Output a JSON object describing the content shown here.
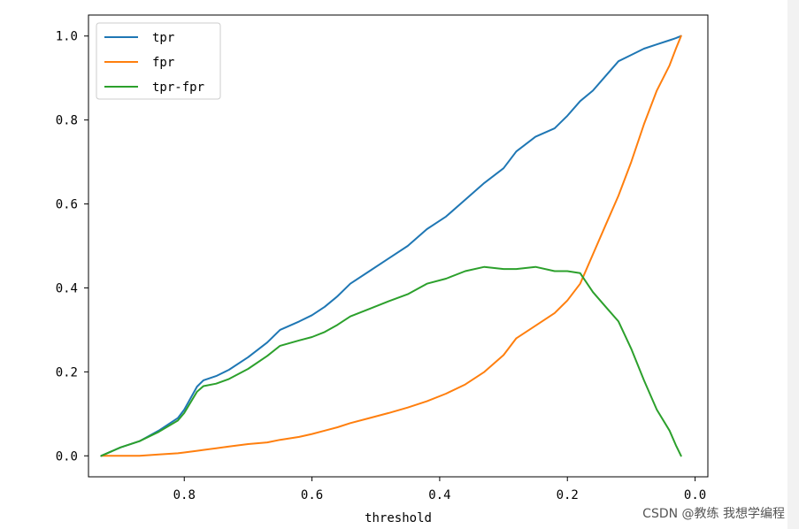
{
  "watermark": "CSDN @教练 我想学编程",
  "chart_data": {
    "type": "line",
    "xlabel": "threshold",
    "ylabel": "",
    "xlim": [
      0.95,
      -0.02
    ],
    "ylim": [
      -0.05,
      1.05
    ],
    "x_inverted": true,
    "xticks": [
      0.8,
      0.6,
      0.4,
      0.2,
      0.0
    ],
    "xtick_labels": [
      "0.8",
      "0.6",
      "0.4",
      "0.2",
      "0.0"
    ],
    "yticks": [
      0.0,
      0.2,
      0.4,
      0.6,
      0.8,
      1.0
    ],
    "ytick_labels": [
      "0.0",
      "0.2",
      "0.4",
      "0.6",
      "0.8",
      "1.0"
    ],
    "grid": false,
    "legend_position": "upper-left",
    "x": [
      0.93,
      0.9,
      0.87,
      0.84,
      0.81,
      0.8,
      0.78,
      0.77,
      0.75,
      0.73,
      0.7,
      0.67,
      0.65,
      0.62,
      0.6,
      0.58,
      0.56,
      0.54,
      0.51,
      0.48,
      0.45,
      0.42,
      0.39,
      0.36,
      0.33,
      0.3,
      0.28,
      0.25,
      0.22,
      0.2,
      0.18,
      0.16,
      0.14,
      0.12,
      0.1,
      0.08,
      0.06,
      0.04,
      0.03,
      0.022
    ],
    "series": [
      {
        "name": "tpr",
        "color": "#1f77b4",
        "values": [
          0.0,
          0.02,
          0.035,
          0.06,
          0.09,
          0.11,
          0.165,
          0.18,
          0.19,
          0.205,
          0.235,
          0.27,
          0.3,
          0.32,
          0.335,
          0.355,
          0.38,
          0.41,
          0.44,
          0.47,
          0.5,
          0.54,
          0.57,
          0.61,
          0.65,
          0.685,
          0.725,
          0.76,
          0.78,
          0.81,
          0.845,
          0.87,
          0.905,
          0.94,
          0.955,
          0.97,
          0.98,
          0.99,
          0.995,
          1.0
        ]
      },
      {
        "name": "fpr",
        "color": "#ff7f0e",
        "values": [
          0.0,
          0.0,
          0.0,
          0.003,
          0.006,
          0.008,
          0.012,
          0.014,
          0.018,
          0.022,
          0.028,
          0.032,
          0.038,
          0.045,
          0.052,
          0.06,
          0.068,
          0.078,
          0.09,
          0.102,
          0.115,
          0.13,
          0.148,
          0.17,
          0.2,
          0.24,
          0.28,
          0.31,
          0.34,
          0.37,
          0.41,
          0.48,
          0.55,
          0.62,
          0.7,
          0.79,
          0.87,
          0.93,
          0.97,
          1.0
        ]
      },
      {
        "name": "tpr-fpr",
        "color": "#2ca02c",
        "values": [
          0.0,
          0.02,
          0.035,
          0.057,
          0.084,
          0.102,
          0.153,
          0.166,
          0.172,
          0.183,
          0.207,
          0.238,
          0.262,
          0.275,
          0.283,
          0.295,
          0.312,
          0.332,
          0.35,
          0.368,
          0.385,
          0.41,
          0.422,
          0.44,
          0.45,
          0.445,
          0.445,
          0.45,
          0.44,
          0.44,
          0.435,
          0.39,
          0.355,
          0.32,
          0.255,
          0.18,
          0.11,
          0.06,
          0.025,
          0.0
        ]
      }
    ]
  }
}
